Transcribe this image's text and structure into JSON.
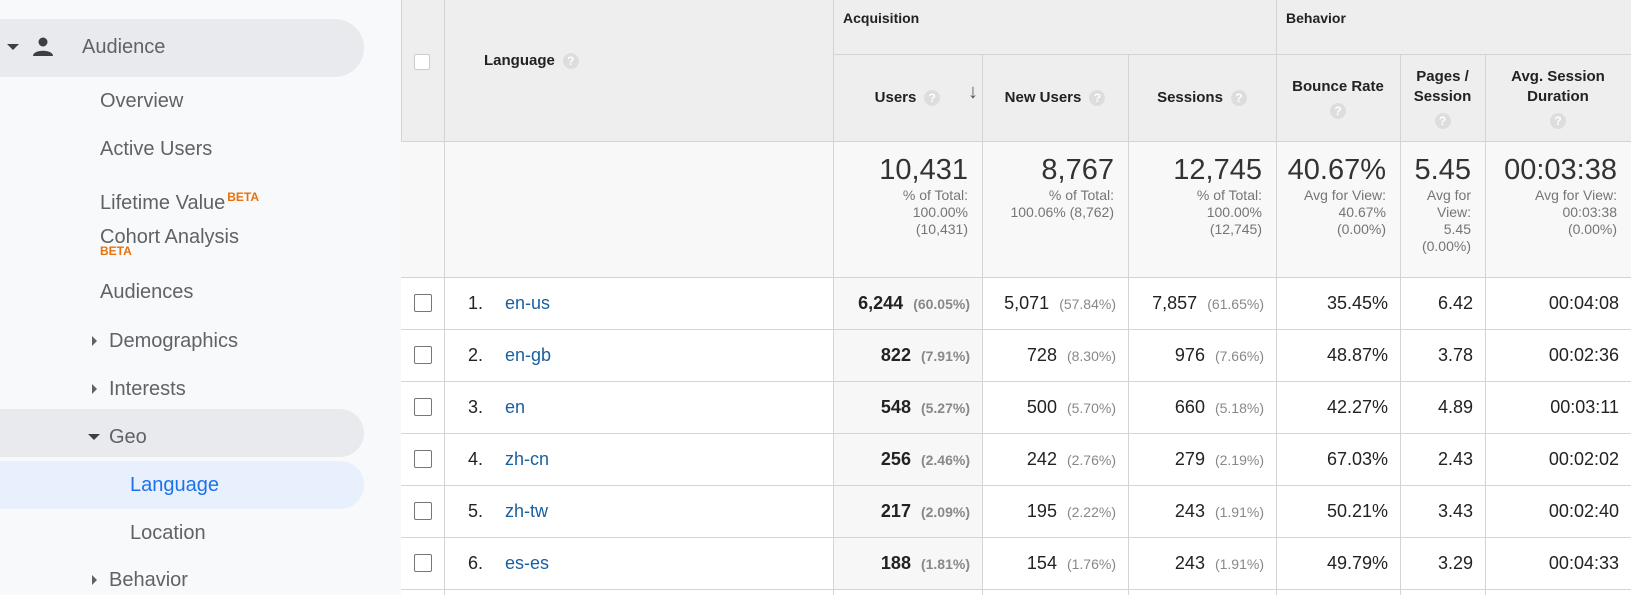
{
  "sidebar": {
    "items": [
      {
        "label": "Audience",
        "level": 0,
        "state": "open"
      },
      {
        "label": "Overview",
        "level": 1
      },
      {
        "label": "Active Users",
        "level": 1
      },
      {
        "label": "Lifetime Value",
        "level": 1,
        "badge": "BETA"
      },
      {
        "label": "Cohort Analysis",
        "level": 1,
        "badge_below": "BETA"
      },
      {
        "label": "Audiences",
        "level": 1
      },
      {
        "label": "Demographics",
        "level": 1,
        "state": "closed"
      },
      {
        "label": "Interests",
        "level": 1,
        "state": "closed"
      },
      {
        "label": "Geo",
        "level": 1,
        "state": "open"
      },
      {
        "label": "Language",
        "level": 2,
        "selected": true
      },
      {
        "label": "Location",
        "level": 2
      },
      {
        "label": "Behavior",
        "level": 1,
        "state": "closed"
      }
    ]
  },
  "table": {
    "dimension": "Language",
    "groups": [
      "Acquisition",
      "Behavior"
    ],
    "columns": [
      "Users",
      "New Users",
      "Sessions",
      "Bounce Rate",
      "Pages / Session",
      "Avg. Session Duration"
    ],
    "totals": [
      {
        "value": "10,431",
        "note": [
          "% of Total:",
          "100.00%",
          "(10,431)"
        ]
      },
      {
        "value": "8,767",
        "note": [
          "% of Total:",
          "100.06% (8,762)"
        ]
      },
      {
        "value": "12,745",
        "note": [
          "% of Total:",
          "100.00%",
          "(12,745)"
        ]
      },
      {
        "value": "40.67%",
        "note": [
          "Avg for View:",
          "40.67%",
          "(0.00%)"
        ]
      },
      {
        "value": "5.45",
        "note": [
          "Avg for",
          "View:",
          "5.45",
          "(0.00%)"
        ]
      },
      {
        "value": "00:03:38",
        "note": [
          "Avg for View:",
          "00:03:38",
          "(0.00%)"
        ]
      }
    ],
    "rows": [
      {
        "index": "1.",
        "language": "en-us",
        "cells": [
          [
            "6,244",
            "(60.05%)"
          ],
          [
            "5,071",
            "(57.84%)"
          ],
          [
            "7,857",
            "(61.65%)"
          ],
          [
            "35.45%"
          ],
          [
            "6.42"
          ],
          [
            "00:04:08"
          ]
        ]
      },
      {
        "index": "2.",
        "language": "en-gb",
        "cells": [
          [
            "822",
            "(7.91%)"
          ],
          [
            "728",
            "(8.30%)"
          ],
          [
            "976",
            "(7.66%)"
          ],
          [
            "48.87%"
          ],
          [
            "3.78"
          ],
          [
            "00:02:36"
          ]
        ]
      },
      {
        "index": "3.",
        "language": "en",
        "cells": [
          [
            "548",
            "(5.27%)"
          ],
          [
            "500",
            "(5.70%)"
          ],
          [
            "660",
            "(5.18%)"
          ],
          [
            "42.27%"
          ],
          [
            "4.89"
          ],
          [
            "00:03:11"
          ]
        ]
      },
      {
        "index": "4.",
        "language": "zh-cn",
        "cells": [
          [
            "256",
            "(2.46%)"
          ],
          [
            "242",
            "(2.76%)"
          ],
          [
            "279",
            "(2.19%)"
          ],
          [
            "67.03%"
          ],
          [
            "2.43"
          ],
          [
            "00:02:02"
          ]
        ]
      },
      {
        "index": "5.",
        "language": "zh-tw",
        "cells": [
          [
            "217",
            "(2.09%)"
          ],
          [
            "195",
            "(2.22%)"
          ],
          [
            "243",
            "(1.91%)"
          ],
          [
            "50.21%"
          ],
          [
            "3.43"
          ],
          [
            "00:02:40"
          ]
        ]
      },
      {
        "index": "6.",
        "language": "es-es",
        "cells": [
          [
            "188",
            "(1.81%)"
          ],
          [
            "154",
            "(1.76%)"
          ],
          [
            "243",
            "(1.91%)"
          ],
          [
            "49.79%"
          ],
          [
            "3.29"
          ],
          [
            "00:04:33"
          ]
        ]
      }
    ]
  }
}
